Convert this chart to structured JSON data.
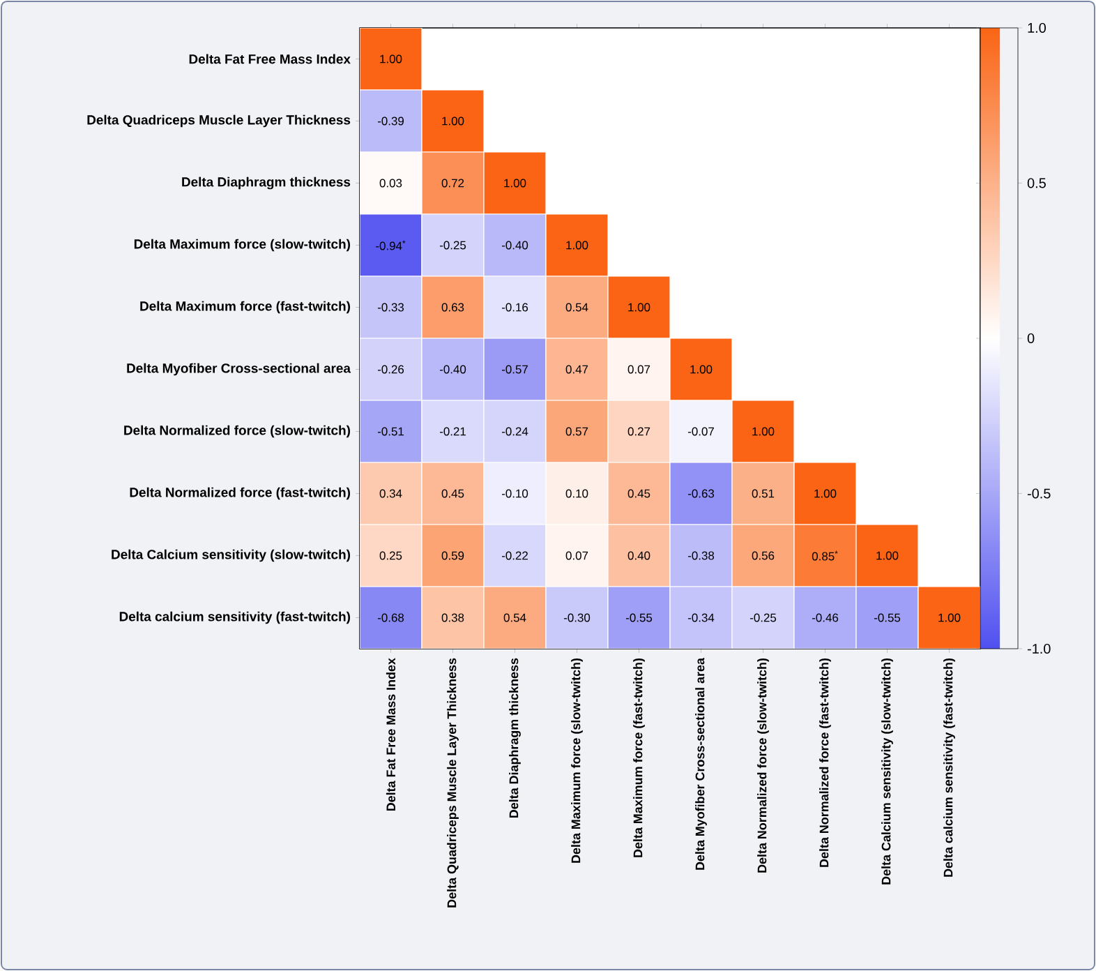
{
  "chart_data": {
    "type": "heatmap",
    "categories": [
      "Delta Fat Free Mass Index",
      "Delta Quadriceps Muscle Layer Thickness",
      "Delta Diaphragm thickness",
      "Delta Maximum force (slow-twitch)",
      "Delta Maximum force (fast-twitch)",
      "Delta Myofiber Cross-sectional area",
      "Delta Normalized force (slow-twitch)",
      "Delta Normalized force (fast-twitch)",
      "Delta Calcium sensitivity (slow-twitch)",
      "Delta calcium sensitivity (fast-twitch)"
    ],
    "y_categories": [
      "Delta Fat Free Mass Index",
      "Delta Quadriceps Muscle Layer Thickness",
      "Delta Diaphragm thickness",
      "Delta Maximum force (slow-twitch)",
      "Delta Maximum force (fast-twitch)",
      "Delta Myofiber Cross-sectional area",
      "Delta Normalized force (slow-twitch)",
      "Delta Normalized force (fast-twitch)",
      "Delta Calcium sensitivity (slow-twitch)",
      "Delta calcium sensitivity (fast-twitch)"
    ],
    "cells": [
      [
        1.0,
        null,
        null,
        null,
        null,
        null,
        null,
        null,
        null,
        null
      ],
      [
        -0.39,
        1.0,
        null,
        null,
        null,
        null,
        null,
        null,
        null,
        null
      ],
      [
        0.03,
        0.72,
        1.0,
        null,
        null,
        null,
        null,
        null,
        null,
        null
      ],
      [
        -0.94,
        -0.25,
        -0.4,
        1.0,
        null,
        null,
        null,
        null,
        null,
        null
      ],
      [
        -0.33,
        0.63,
        -0.16,
        0.54,
        1.0,
        null,
        null,
        null,
        null,
        null
      ],
      [
        -0.26,
        -0.4,
        -0.57,
        0.47,
        0.07,
        1.0,
        null,
        null,
        null,
        null
      ],
      [
        -0.51,
        -0.21,
        -0.24,
        0.57,
        0.27,
        -0.07,
        1.0,
        null,
        null,
        null
      ],
      [
        0.34,
        0.45,
        -0.1,
        0.1,
        0.45,
        -0.63,
        0.51,
        1.0,
        null,
        null
      ],
      [
        0.25,
        0.59,
        -0.22,
        0.07,
        0.4,
        -0.38,
        0.56,
        0.85,
        1.0,
        null
      ],
      [
        -0.68,
        0.38,
        0.54,
        -0.3,
        -0.55,
        -0.34,
        -0.25,
        -0.46,
        -0.55,
        1.0
      ]
    ],
    "cell_labels": [
      [
        "1.00",
        null,
        null,
        null,
        null,
        null,
        null,
        null,
        null,
        null
      ],
      [
        "-0.39",
        "1.00",
        null,
        null,
        null,
        null,
        null,
        null,
        null,
        null
      ],
      [
        "0.03",
        "0.72",
        "1.00",
        null,
        null,
        null,
        null,
        null,
        null,
        null
      ],
      [
        "-0.94$^{*}$",
        "-0.25",
        "-0.40",
        "1.00",
        null,
        null,
        null,
        null,
        null,
        null
      ],
      [
        "-0.33",
        "0.63",
        "-0.16",
        "0.54",
        "1.00",
        null,
        null,
        null,
        null,
        null
      ],
      [
        "-0.26",
        "-0.40",
        "-0.57",
        "0.47",
        "0.07",
        "1.00",
        null,
        null,
        null,
        null
      ],
      [
        "-0.51",
        "-0.21",
        "-0.24",
        "0.57",
        "0.27",
        "-0.07",
        "1.00",
        null,
        null,
        null
      ],
      [
        "0.34",
        "0.45",
        "-0.10",
        "0.10",
        "0.45",
        "-0.63",
        "0.51",
        "1.00",
        null,
        null
      ],
      [
        "0.25",
        "0.59",
        "-0.22",
        "0.07",
        "0.40",
        "-0.38",
        "0.56",
        "0.85$^{*}$",
        "1.00",
        null
      ],
      [
        "-0.68",
        "0.38",
        "0.54",
        "-0.30",
        "-0.55",
        "-0.34",
        "-0.25",
        "-0.46",
        "-0.55",
        "1.00"
      ]
    ],
    "clim": [
      -1,
      1
    ],
    "cticks": [
      {
        "value": -1,
        "label": "-1.0"
      },
      {
        "value": -0.5,
        "label": "-0.5"
      },
      {
        "value": 0,
        "label": "0"
      },
      {
        "value": 0.5,
        "label": "0.5"
      },
      {
        "value": 1,
        "label": "1.0"
      }
    ]
  }
}
